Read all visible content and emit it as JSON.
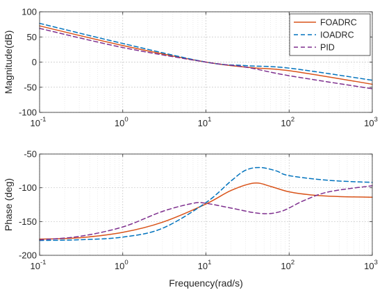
{
  "chart_data": [
    {
      "type": "line",
      "ylabel": "Magnitude(dB)",
      "xlabel": "",
      "x_scale": "log",
      "xlim": [
        0.1,
        1000
      ],
      "ylim": [
        -100,
        100
      ],
      "x_tick_labels": [
        {
          "base": "10",
          "exp": "-1"
        },
        {
          "base": "10",
          "exp": "0"
        },
        {
          "base": "10",
          "exp": "1"
        },
        {
          "base": "10",
          "exp": "2"
        },
        {
          "base": "10",
          "exp": "3"
        }
      ],
      "y_ticks": [
        100,
        50,
        0,
        -50,
        -100
      ],
      "y_tick_labels": [
        "100",
        "50",
        "0",
        "-50",
        "-100"
      ],
      "grid": true,
      "minor_grid": true,
      "legend": {
        "placement": "top-right",
        "entries": [
          "FOADRC",
          "IOADRC",
          "PID"
        ]
      },
      "series": [
        {
          "name": "FOADRC",
          "color": "#d95319",
          "dash": "solid",
          "x": [
            0.1,
            1,
            10,
            35,
            100,
            1000
          ],
          "y": [
            72,
            33,
            0,
            -11,
            -17,
            -44
          ]
        },
        {
          "name": "IOADRC",
          "color": "#0072bd",
          "dash": "dashed",
          "x": [
            0.1,
            1,
            10,
            30,
            100,
            1000
          ],
          "y": [
            77,
            37,
            0,
            -7,
            -12,
            -36
          ]
        },
        {
          "name": "PID",
          "color": "#7e2f8e",
          "dash": "dashed",
          "x": [
            0.1,
            1,
            10,
            30,
            100,
            1000
          ],
          "y": [
            67,
            29,
            0,
            -10,
            -27,
            -53
          ]
        }
      ]
    },
    {
      "type": "line",
      "ylabel": "Phase (deg)",
      "xlabel": "Frequency(rad/s)",
      "x_scale": "log",
      "xlim": [
        0.1,
        1000
      ],
      "ylim": [
        -200,
        -50
      ],
      "x_tick_labels": [
        {
          "base": "10",
          "exp": "-1"
        },
        {
          "base": "10",
          "exp": "0"
        },
        {
          "base": "10",
          "exp": "1"
        },
        {
          "base": "10",
          "exp": "2"
        },
        {
          "base": "10",
          "exp": "3"
        }
      ],
      "y_ticks": [
        -50,
        -100,
        -150,
        -200
      ],
      "y_tick_labels": [
        "-50",
        "-100",
        "-150",
        "-200"
      ],
      "grid": true,
      "minor_grid": true,
      "series": [
        {
          "name": "FOADRC",
          "color": "#d95319",
          "dash": "solid",
          "x": [
            0.1,
            0.3,
            1,
            3,
            10,
            20,
            38,
            60,
            100,
            200,
            400,
            1000
          ],
          "y": [
            -176,
            -174,
            -166,
            -151,
            -124,
            -104,
            -93,
            -98,
            -106,
            -111,
            -113,
            -114
          ]
        },
        {
          "name": "IOADRC",
          "color": "#0072bd",
          "dash": "dashed",
          "x": [
            0.1,
            0.3,
            1,
            3,
            10,
            20,
            30,
            45,
            70,
            100,
            300,
            1000
          ],
          "y": [
            -178,
            -177,
            -173,
            -160,
            -122,
            -90,
            -74,
            -70,
            -75,
            -82,
            -89,
            -92
          ]
        },
        {
          "name": "PID",
          "color": "#7e2f8e",
          "dash": "dashed",
          "x": [
            0.1,
            0.3,
            1,
            3,
            7,
            10,
            20,
            45,
            80,
            150,
            300,
            1000
          ],
          "y": [
            -177,
            -172,
            -158,
            -135,
            -123,
            -123,
            -130,
            -138,
            -135,
            -119,
            -106,
            -97
          ]
        }
      ]
    }
  ]
}
